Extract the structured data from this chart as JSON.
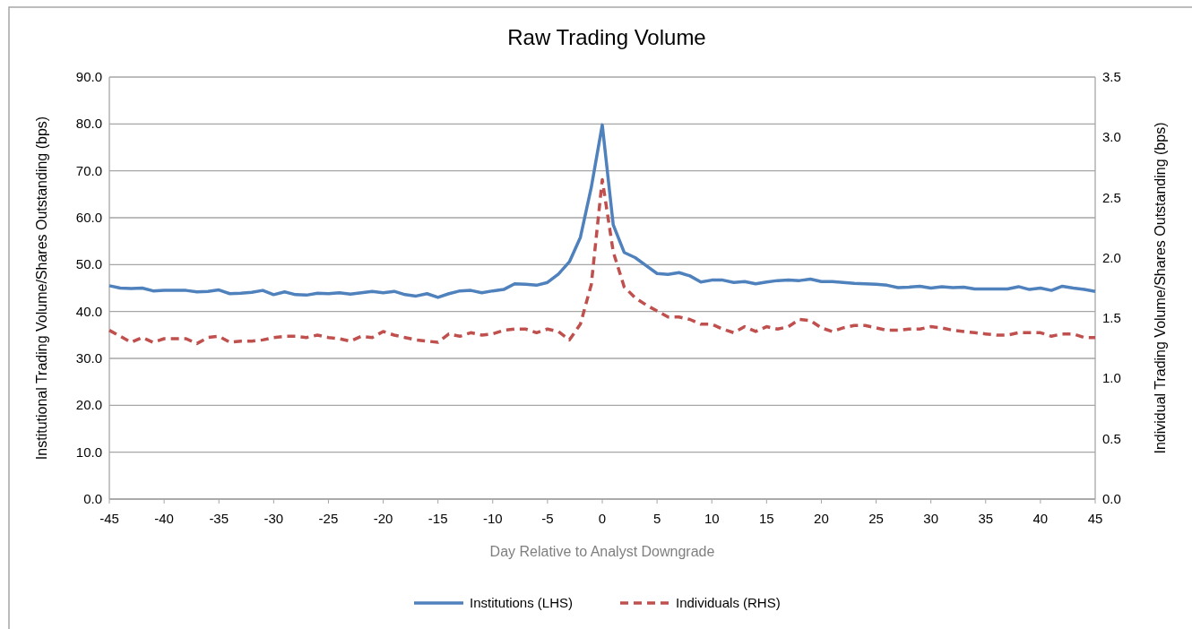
{
  "chart_data": {
    "type": "line",
    "title": "Raw Trading Volume",
    "xlabel": "Day Relative to Analyst Downgrade",
    "ylabel": "Institutional Trading Volume/Shares Outstanding (bps)",
    "y2label": "Individual Trading Volume/Shares Outstanding (bps)",
    "x": [
      -45,
      -44,
      -43,
      -42,
      -41,
      -40,
      -39,
      -38,
      -37,
      -36,
      -35,
      -34,
      -33,
      -32,
      -31,
      -30,
      -29,
      -28,
      -27,
      -26,
      -25,
      -24,
      -23,
      -22,
      -21,
      -20,
      -19,
      -18,
      -17,
      -16,
      -15,
      -14,
      -13,
      -12,
      -11,
      -10,
      -9,
      -8,
      -7,
      -6,
      -5,
      -4,
      -3,
      -2,
      -1,
      0,
      1,
      2,
      3,
      4,
      5,
      6,
      7,
      8,
      9,
      10,
      11,
      12,
      13,
      14,
      15,
      16,
      17,
      18,
      19,
      20,
      21,
      22,
      23,
      24,
      25,
      26,
      27,
      28,
      29,
      30,
      31,
      32,
      33,
      34,
      35,
      36,
      37,
      38,
      39,
      40,
      41,
      42,
      43,
      44,
      45
    ],
    "xlim": [
      -45,
      45
    ],
    "xticks": [
      -45,
      -40,
      -35,
      -30,
      -25,
      -20,
      -15,
      -10,
      -5,
      0,
      5,
      10,
      15,
      20,
      25,
      30,
      35,
      40,
      45
    ],
    "ylim": [
      0,
      90
    ],
    "yticks": [
      {
        "value": 0,
        "label": "0.0"
      },
      {
        "value": 10,
        "label": "10.0"
      },
      {
        "value": 20,
        "label": "20.0"
      },
      {
        "value": 30,
        "label": "30.0"
      },
      {
        "value": 40,
        "label": "40.0"
      },
      {
        "value": 50,
        "label": "50.0"
      },
      {
        "value": 60,
        "label": "60.0"
      },
      {
        "value": 70,
        "label": "70.0"
      },
      {
        "value": 80,
        "label": "80.0"
      },
      {
        "value": 90,
        "label": "90.0"
      }
    ],
    "y2lim": [
      0,
      3.5
    ],
    "y2ticks": [
      {
        "value": 0,
        "label": "0.0"
      },
      0.5,
      {
        "value": 1,
        "label": "1.0"
      },
      1.5,
      {
        "value": 2,
        "label": "2.0"
      },
      2.5,
      {
        "value": 3,
        "label": "3.0"
      },
      3.5
    ],
    "grid": "y",
    "legend": "bottom",
    "series": [
      {
        "name": "Institutions (LHS)",
        "color": "#4f81bd",
        "line_style": "solid",
        "values": [
          45.5,
          45.0,
          44.9,
          45.0,
          44.4,
          44.5,
          44.5,
          44.5,
          44.2,
          44.3,
          44.6,
          43.8,
          43.9,
          44.1,
          44.5,
          43.6,
          44.2,
          43.6,
          43.5,
          43.9,
          43.8,
          44.0,
          43.7,
          44.0,
          44.3,
          44.0,
          44.3,
          43.6,
          43.3,
          43.8,
          43.0,
          43.8,
          44.4,
          44.5,
          44.0,
          44.4,
          44.7,
          45.9,
          45.8,
          45.6,
          46.2,
          48.0,
          50.6,
          55.8,
          66.5,
          79.8,
          58.5,
          52.6,
          51.5,
          49.8,
          48.1,
          47.9,
          48.3,
          47.6,
          46.3,
          46.7,
          46.7,
          46.2,
          46.4,
          45.9,
          46.3,
          46.6,
          46.7,
          46.6,
          46.9,
          46.4,
          46.4,
          46.2,
          46.0,
          45.9,
          45.8,
          45.6,
          45.1,
          45.2,
          45.4,
          45.0,
          45.3,
          45.1,
          45.2,
          44.8,
          44.8,
          44.8,
          44.8,
          45.3,
          44.7,
          45.0,
          44.5,
          45.4,
          45.0,
          44.7,
          44.3
        ]
      },
      {
        "name": "Individuals (RHS)",
        "color": "#c0504d",
        "line_style": "dashed",
        "axis": "y2",
        "values": [
          1.4,
          1.35,
          1.3,
          1.34,
          1.3,
          1.33,
          1.33,
          1.33,
          1.29,
          1.34,
          1.35,
          1.3,
          1.31,
          1.31,
          1.32,
          1.34,
          1.35,
          1.35,
          1.34,
          1.36,
          1.34,
          1.33,
          1.31,
          1.35,
          1.34,
          1.39,
          1.36,
          1.34,
          1.32,
          1.31,
          1.3,
          1.37,
          1.35,
          1.38,
          1.36,
          1.37,
          1.4,
          1.41,
          1.41,
          1.38,
          1.41,
          1.39,
          1.32,
          1.45,
          1.78,
          2.65,
          2.05,
          1.76,
          1.67,
          1.61,
          1.56,
          1.51,
          1.51,
          1.49,
          1.45,
          1.45,
          1.41,
          1.38,
          1.43,
          1.39,
          1.43,
          1.41,
          1.43,
          1.49,
          1.48,
          1.42,
          1.39,
          1.42,
          1.44,
          1.44,
          1.42,
          1.4,
          1.4,
          1.41,
          1.41,
          1.43,
          1.42,
          1.4,
          1.39,
          1.38,
          1.37,
          1.36,
          1.36,
          1.38,
          1.38,
          1.38,
          1.35,
          1.37,
          1.37,
          1.34,
          1.34
        ]
      }
    ]
  }
}
